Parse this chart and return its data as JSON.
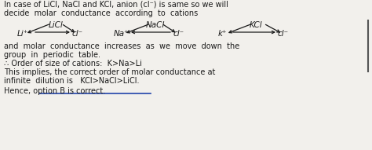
{
  "figsize": [
    4.74,
    1.91
  ],
  "dpi": 100,
  "bg_color": "#f2f0ec",
  "font_color": "#1a1a1a",
  "line1": "In case of LiCl, NaCl and KCl, anion (cl⁻) is same so we will",
  "line2": "decide  molar  conductance  according  to  cations",
  "line3": "and  molar  conductance  increases  as  we  move  down  the",
  "line4": "group  in  periodic  table.",
  "line5": "∴ Order of size of cations:  K>Na>Li",
  "line6": "This implies, the correct order of molar conductance at",
  "line7": "infinite  dilution is   KCl>NaCl>LiCl.",
  "line8": "Hence, option B is correct.",
  "licl_label": "LiCl",
  "nacl_label": "NaCl",
  "kcl_label": "KCl",
  "li_ion": "Li⁺",
  "cl1_ion": "cl⁻",
  "na_ion": "Na⁺",
  "cl2_ion": "cl⁻",
  "k_ion": "k⁺",
  "cl3_ion": "cl⁻",
  "underline_color": "#2244aa",
  "arrow_color": "#1a1a1a"
}
